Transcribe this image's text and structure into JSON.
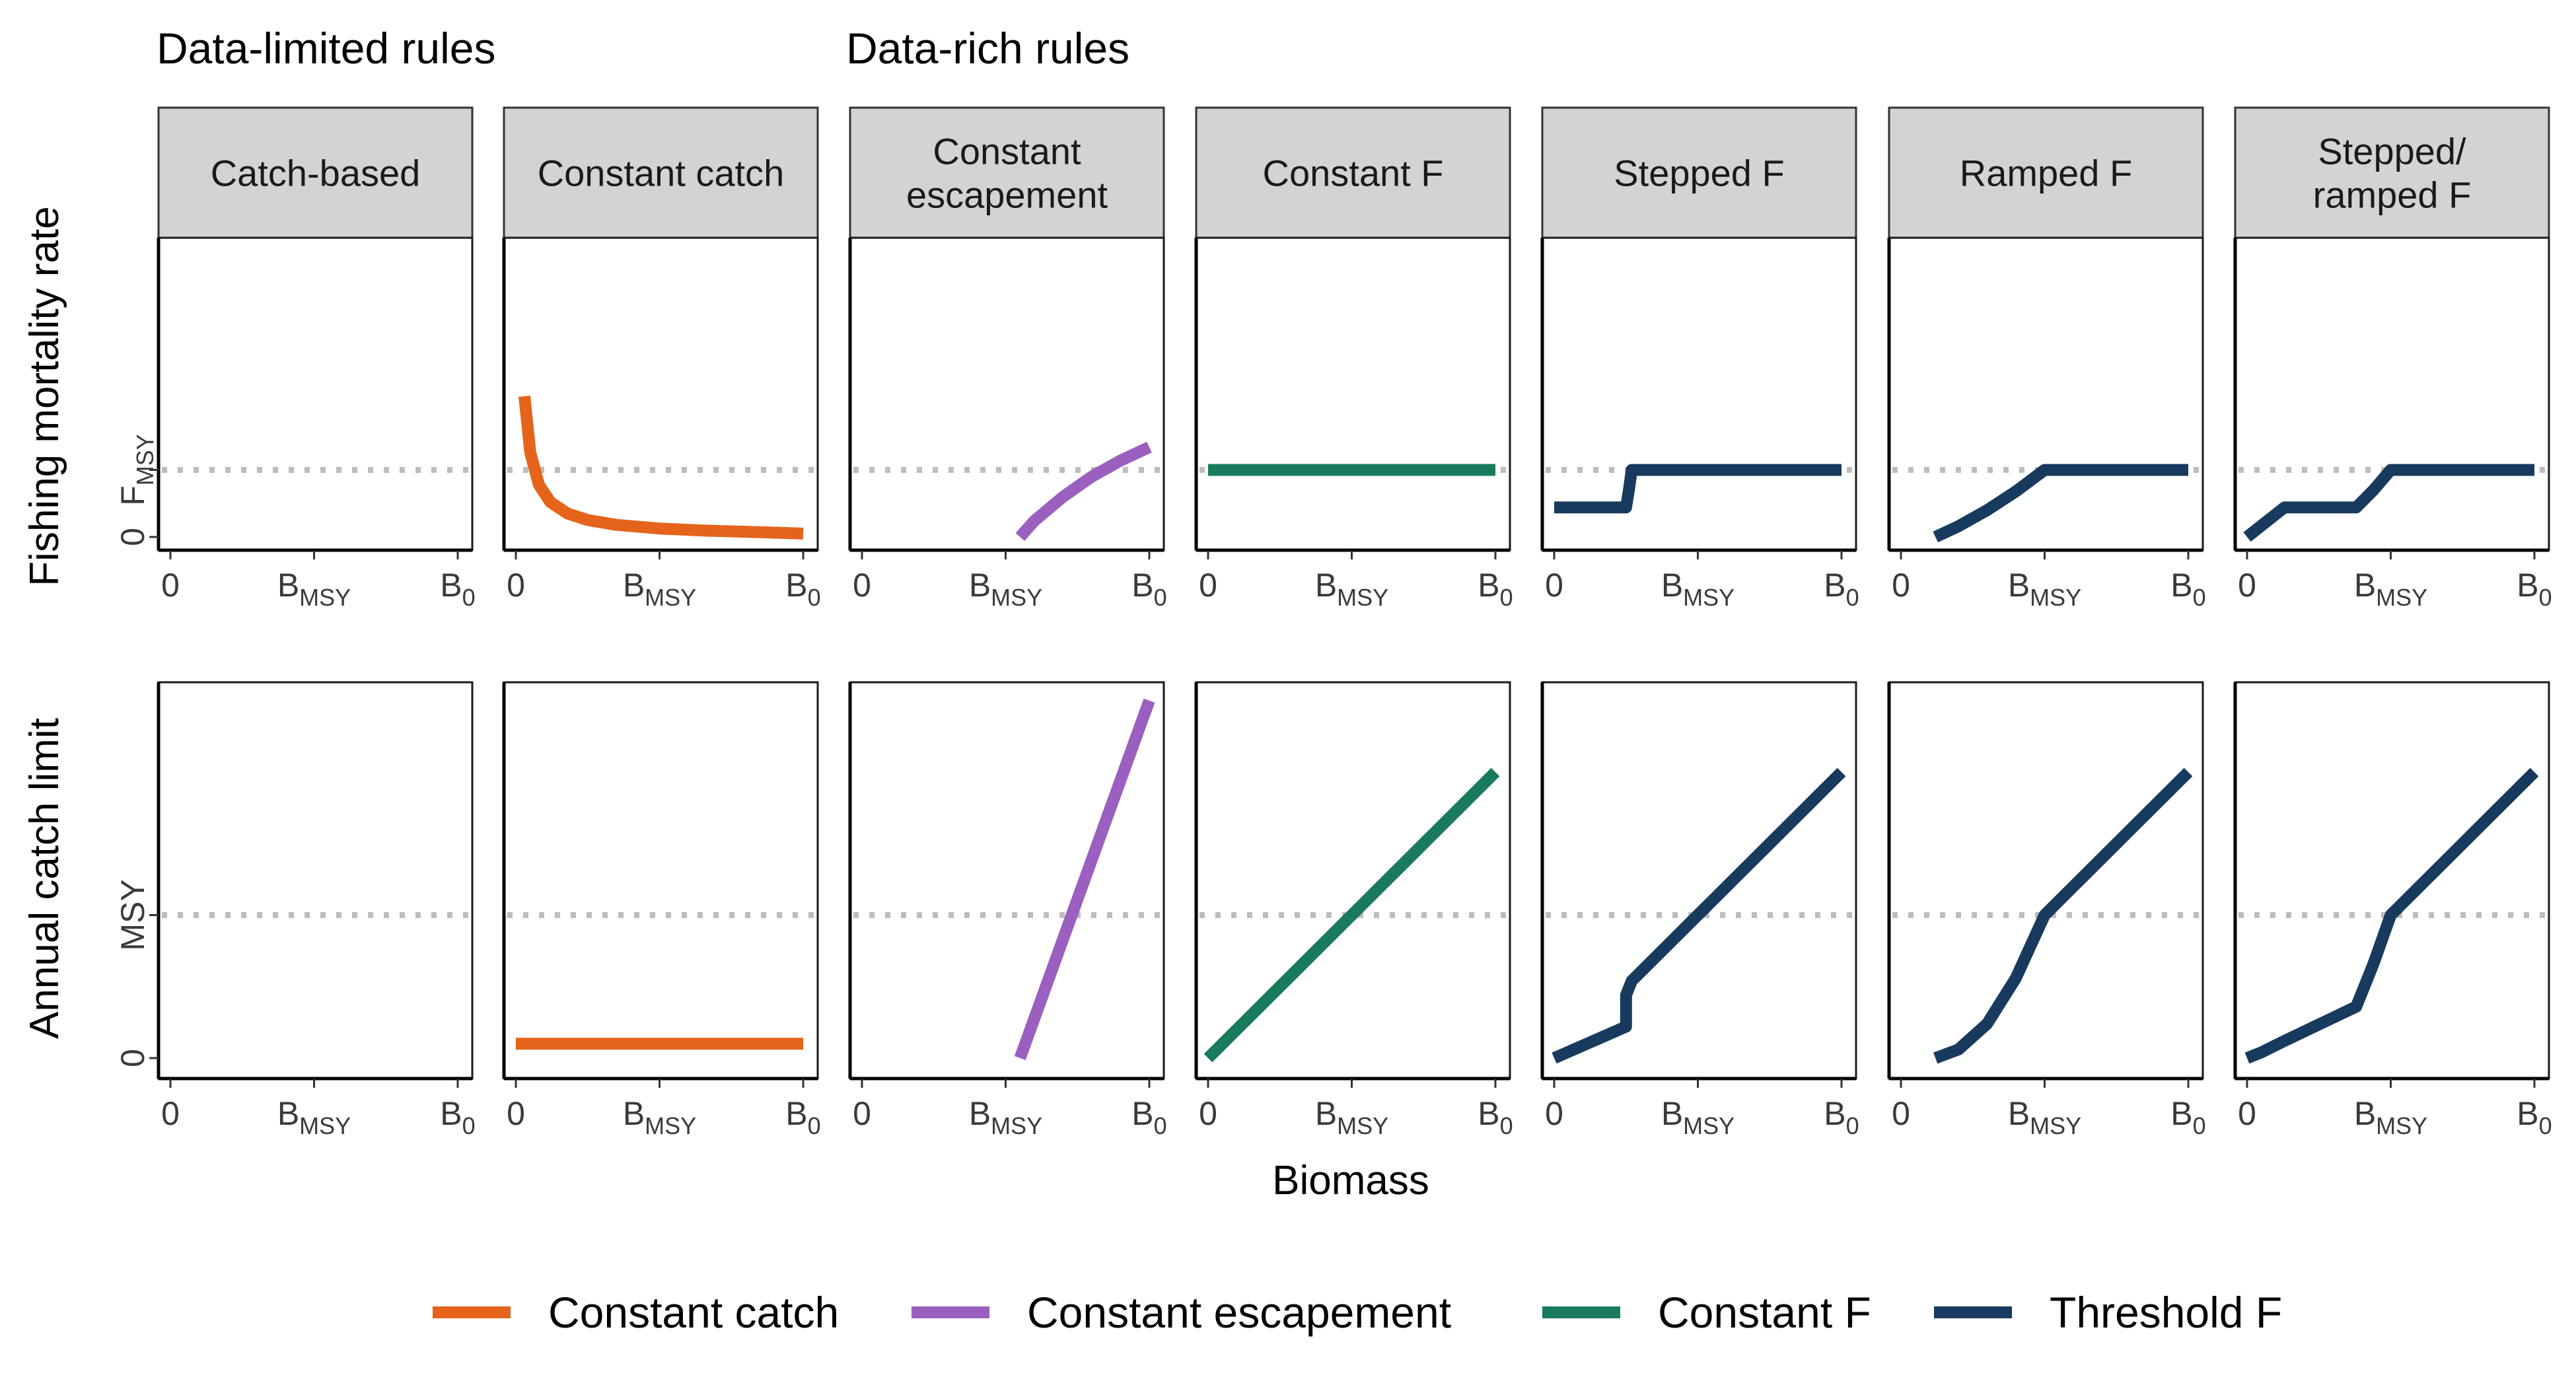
{
  "group_headers": [
    "Data-limited rules",
    "Data-rich rules"
  ],
  "panels": [
    "Catch-based",
    "Constant catch",
    "Constant\nescapement",
    "Constant F",
    "Stepped F",
    "Ramped F",
    "Stepped/\nramped F"
  ],
  "row_titles": [
    "Fishing mortality rate",
    "Annual catch limit"
  ],
  "x_axis_title": "Biomass",
  "x_ticks": [
    {
      "main": "0",
      "sub": ""
    },
    {
      "main": "B",
      "sub": "MSY"
    },
    {
      "main": "B",
      "sub": "0"
    }
  ],
  "y_ticks_row1": [
    {
      "main": "0",
      "sub": ""
    },
    {
      "main": "F",
      "sub": "MSY"
    }
  ],
  "y_ticks_row2": [
    {
      "main": "0",
      "sub": ""
    },
    {
      "main": "MSY",
      "sub": ""
    }
  ],
  "legend": [
    {
      "label": "Constant catch",
      "color": "#E5631A"
    },
    {
      "label": "Constant escapement",
      "color": "#9A5FBF"
    },
    {
      "label": "Constant F",
      "color": "#197A5E"
    },
    {
      "label": "Threshold F",
      "color": "#173A5E"
    }
  ],
  "reference_line_color": "#BDBDBD",
  "chart_data": {
    "type": "line",
    "x_axis": {
      "label": "Biomass",
      "range": [
        0,
        1
      ],
      "tick_values": [
        0,
        0.5,
        1
      ],
      "tick_labels": [
        "0",
        "B_MSY",
        "B_0"
      ]
    },
    "rows": [
      {
        "name": "Fishing mortality rate",
        "y_range": [
          0,
          1
        ],
        "reference_y": 0.5,
        "reference_label": "F_MSY"
      },
      {
        "name": "Annual catch limit",
        "y_range": [
          0,
          1
        ],
        "reference_y": 0.5,
        "reference_label": "MSY"
      }
    ],
    "panels": [
      {
        "title": "Catch-based",
        "group": "Data-limited rules",
        "series": []
      },
      {
        "title": "Constant catch",
        "group": "Data-limited rules",
        "series": [
          {
            "name": "Constant catch",
            "row": 0,
            "x": [
              0.03,
              0.05,
              0.08,
              0.12,
              0.18,
              0.25,
              0.35,
              0.5,
              0.65,
              0.8,
              1.0
            ],
            "y": [
              1.05,
              0.63,
              0.39,
              0.26,
              0.175,
              0.126,
              0.09,
              0.063,
              0.048,
              0.039,
              0.025
            ]
          },
          {
            "name": "Constant catch",
            "row": 1,
            "x": [
              0.0,
              1.0
            ],
            "y": [
              0.05,
              0.05
            ]
          }
        ]
      },
      {
        "title": "Constant escapement",
        "group": "Data-rich rules",
        "series": [
          {
            "name": "Constant escapement",
            "row": 0,
            "x": [
              0.55,
              0.6,
              0.7,
              0.8,
              0.9,
              1.0
            ],
            "y": [
              0.0,
              0.12,
              0.3,
              0.45,
              0.57,
              0.67
            ]
          },
          {
            "name": "Constant escapement",
            "row": 1,
            "x": [
              0.55,
              1.0
            ],
            "y": [
              0.0,
              1.25
            ]
          }
        ]
      },
      {
        "title": "Constant F",
        "group": "Data-rich rules",
        "series": [
          {
            "name": "Constant F",
            "row": 0,
            "x": [
              0.0,
              1.0
            ],
            "y": [
              0.5,
              0.5
            ]
          },
          {
            "name": "Constant F",
            "row": 1,
            "x": [
              0.0,
              1.0
            ],
            "y": [
              0.0,
              1.0
            ]
          }
        ]
      },
      {
        "title": "Stepped F",
        "group": "Data-rich rules",
        "series": [
          {
            "name": "Threshold F",
            "row": 0,
            "x": [
              0.0,
              0.25,
              0.26,
              0.27,
              1.0
            ],
            "y": [
              0.22,
              0.22,
              0.35,
              0.5,
              0.5
            ]
          },
          {
            "name": "Threshold F",
            "row": 1,
            "x": [
              0.0,
              0.25,
              0.25,
              0.27,
              1.0
            ],
            "y": [
              0.0,
              0.11,
              0.22,
              0.27,
              1.0
            ]
          }
        ]
      },
      {
        "title": "Ramped F",
        "group": "Data-rich rules",
        "series": [
          {
            "name": "Threshold F",
            "row": 0,
            "x": [
              0.12,
              0.2,
              0.3,
              0.4,
              0.5,
              1.0
            ],
            "y": [
              0.0,
              0.08,
              0.2,
              0.34,
              0.5,
              0.5
            ]
          },
          {
            "name": "Threshold F",
            "row": 1,
            "x": [
              0.12,
              0.2,
              0.3,
              0.4,
              0.5,
              1.0
            ],
            "y": [
              0.0,
              0.03,
              0.12,
              0.28,
              0.5,
              1.0
            ]
          }
        ]
      },
      {
        "title": "Stepped/ramped F",
        "group": "Data-rich rules",
        "series": [
          {
            "name": "Threshold F",
            "row": 0,
            "x": [
              0.0,
              0.13,
              0.38,
              0.44,
              0.5,
              1.0
            ],
            "y": [
              0.0,
              0.22,
              0.22,
              0.35,
              0.5,
              0.5
            ]
          },
          {
            "name": "Threshold F",
            "row": 1,
            "x": [
              0.0,
              0.05,
              0.13,
              0.38,
              0.44,
              0.5,
              1.0
            ],
            "y": [
              0.0,
              0.02,
              0.06,
              0.18,
              0.33,
              0.5,
              1.0
            ]
          }
        ]
      }
    ],
    "legend_position": "bottom"
  }
}
